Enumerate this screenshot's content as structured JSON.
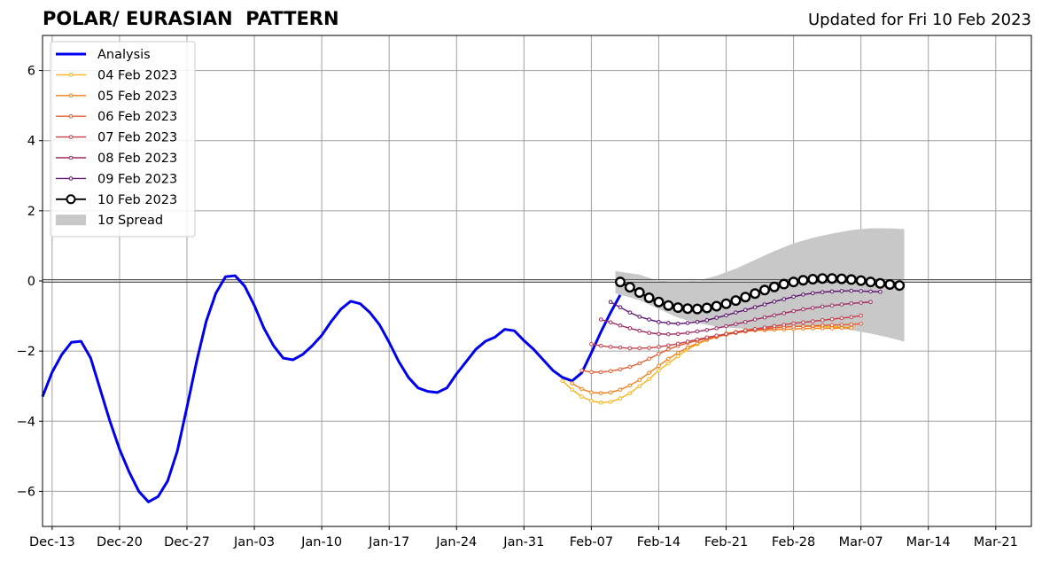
{
  "chart_data": {
    "type": "line",
    "title": "POLAR/ EURASIAN  PATTERN",
    "subtitle": "Updated for Fri 10 Feb 2023",
    "x_tick_labels": [
      "Dec-13",
      "Dec-20",
      "Dec-27",
      "Jan-03",
      "Jan-10",
      "Jan-17",
      "Jan-24",
      "Jan-31",
      "Feb-07",
      "Feb-14",
      "Feb-21",
      "Feb-28",
      "Mar-07",
      "Mar-14",
      "Mar-21"
    ],
    "x_tick_days": [
      0,
      7,
      14,
      21,
      28,
      35,
      42,
      49,
      56,
      63,
      70,
      77,
      84,
      91,
      98
    ],
    "xlim_days": [
      -1,
      101.7
    ],
    "y_ticks": [
      6,
      4,
      2,
      0,
      -2,
      -4,
      -6
    ],
    "ylim": [
      -7,
      7
    ],
    "grid": true,
    "legend_position": "top-left",
    "legend": [
      "Analysis",
      "04 Feb 2023",
      "05 Feb 2023",
      "06 Feb 2023",
      "07 Feb 2023",
      "08 Feb 2023",
      "09 Feb 2023",
      "10 Feb 2023",
      "1σ Spread"
    ],
    "analysis": {
      "name": "Analysis",
      "color": "#0000ee",
      "start_day": -1,
      "values": [
        -3.3,
        -2.6,
        -2.1,
        -1.75,
        -1.72,
        -2.2,
        -3.1,
        -4.0,
        -4.8,
        -5.45,
        -6.0,
        -6.3,
        -6.15,
        -5.7,
        -4.85,
        -3.6,
        -2.3,
        -1.15,
        -0.35,
        0.12,
        0.15,
        -0.15,
        -0.7,
        -1.35,
        -1.85,
        -2.2,
        -2.25,
        -2.1,
        -1.85,
        -1.55,
        -1.15,
        -0.8,
        -0.58,
        -0.65,
        -0.9,
        -1.25,
        -1.75,
        -2.3,
        -2.75,
        -3.05,
        -3.15,
        -3.18,
        -3.05,
        -2.65,
        -2.3,
        -1.95,
        -1.72,
        -1.6,
        -1.38,
        -1.42,
        -1.7,
        -1.95,
        -2.25,
        -2.55,
        -2.75,
        -2.85,
        -2.62,
        -2.05,
        -1.45,
        -0.9,
        -0.4
      ]
    },
    "forecasts": [
      {
        "name": "04 Feb 2023",
        "color": "#fbb41a",
        "start_day": 53,
        "values": [
          -2.85,
          -3.1,
          -3.3,
          -3.42,
          -3.47,
          -3.45,
          -3.35,
          -3.2,
          -3.0,
          -2.8,
          -2.55,
          -2.35,
          -2.15,
          -1.95,
          -1.8,
          -1.68,
          -1.58,
          -1.5,
          -1.45,
          -1.4,
          -1.37,
          -1.35,
          -1.33,
          -1.32,
          -1.3,
          -1.3,
          -1.3,
          -1.3,
          -1.31,
          -1.32,
          -1.33
        ]
      },
      {
        "name": "05 Feb 2023",
        "color": "#f57d15",
        "start_day": 54,
        "values": [
          -2.92,
          -3.08,
          -3.18,
          -3.2,
          -3.18,
          -3.1,
          -2.98,
          -2.82,
          -2.62,
          -2.42,
          -2.22,
          -2.05,
          -1.9,
          -1.78,
          -1.68,
          -1.6,
          -1.53,
          -1.48,
          -1.44,
          -1.41,
          -1.4,
          -1.39,
          -1.38,
          -1.37,
          -1.36,
          -1.35,
          -1.35,
          -1.35,
          -1.34,
          -1.34
        ]
      },
      {
        "name": "06 Feb 2023",
        "color": "#e55c30",
        "start_day": 55,
        "values": [
          -2.55,
          -2.6,
          -2.6,
          -2.57,
          -2.52,
          -2.45,
          -2.35,
          -2.22,
          -2.08,
          -1.95,
          -1.85,
          -1.77,
          -1.7,
          -1.64,
          -1.58,
          -1.53,
          -1.48,
          -1.44,
          -1.4,
          -1.37,
          -1.34,
          -1.32,
          -1.3,
          -1.29,
          -1.28,
          -1.27,
          -1.26,
          -1.25,
          -1.24,
          -1.22
        ]
      },
      {
        "name": "07 Feb 2023",
        "color": "#c73e4c",
        "start_day": 56,
        "values": [
          -1.8,
          -1.85,
          -1.88,
          -1.9,
          -1.92,
          -1.92,
          -1.91,
          -1.88,
          -1.84,
          -1.79,
          -1.73,
          -1.67,
          -1.61,
          -1.56,
          -1.51,
          -1.46,
          -1.41,
          -1.37,
          -1.33,
          -1.29,
          -1.25,
          -1.21,
          -1.18,
          -1.15,
          -1.12,
          -1.09,
          -1.06,
          -1.03,
          -0.99
        ]
      },
      {
        "name": "08 Feb 2023",
        "color": "#9f2a63",
        "start_day": 57,
        "values": [
          -1.1,
          -1.18,
          -1.27,
          -1.35,
          -1.42,
          -1.48,
          -1.51,
          -1.52,
          -1.51,
          -1.48,
          -1.44,
          -1.4,
          -1.35,
          -1.29,
          -1.23,
          -1.17,
          -1.1,
          -1.04,
          -0.98,
          -0.92,
          -0.86,
          -0.81,
          -0.77,
          -0.73,
          -0.7,
          -0.67,
          -0.64,
          -0.62,
          -0.6
        ]
      },
      {
        "name": "09 Feb 2023",
        "color": "#5c126e",
        "start_day": 58,
        "values": [
          -0.6,
          -0.75,
          -0.9,
          -1.02,
          -1.1,
          -1.17,
          -1.2,
          -1.22,
          -1.2,
          -1.17,
          -1.12,
          -1.05,
          -0.98,
          -0.9,
          -0.83,
          -0.75,
          -0.67,
          -0.59,
          -0.52,
          -0.45,
          -0.39,
          -0.35,
          -0.32,
          -0.3,
          -0.29,
          -0.28,
          -0.29,
          -0.3,
          -0.31
        ]
      },
      {
        "name": "10 Feb 2023",
        "color": "#000000",
        "start_day": 59,
        "values": [
          -0.03,
          -0.18,
          -0.33,
          -0.48,
          -0.6,
          -0.7,
          -0.76,
          -0.79,
          -0.8,
          -0.77,
          -0.72,
          -0.65,
          -0.56,
          -0.46,
          -0.36,
          -0.26,
          -0.17,
          -0.09,
          -0.03,
          0.02,
          0.05,
          0.07,
          0.07,
          0.06,
          0.04,
          0.01,
          -0.03,
          -0.07,
          -0.1,
          -0.13
        ]
      }
    ],
    "spread": {
      "name": "1σ Spread",
      "color": "#c8c8c8",
      "days": [
        58.5,
        61,
        63,
        65,
        67,
        69,
        71,
        73,
        75,
        77,
        79,
        81,
        83,
        85,
        87,
        88.5
      ],
      "upper": [
        0.28,
        0.18,
        0.0,
        -0.05,
        0.0,
        0.15,
        0.35,
        0.6,
        0.85,
        1.07,
        1.23,
        1.35,
        1.45,
        1.5,
        1.5,
        1.48
      ],
      "lower": [
        -0.35,
        -0.55,
        -0.8,
        -1.05,
        -1.2,
        -1.3,
        -1.35,
        -1.38,
        -1.35,
        -1.3,
        -1.3,
        -1.33,
        -1.4,
        -1.5,
        -1.62,
        -1.73
      ]
    }
  }
}
